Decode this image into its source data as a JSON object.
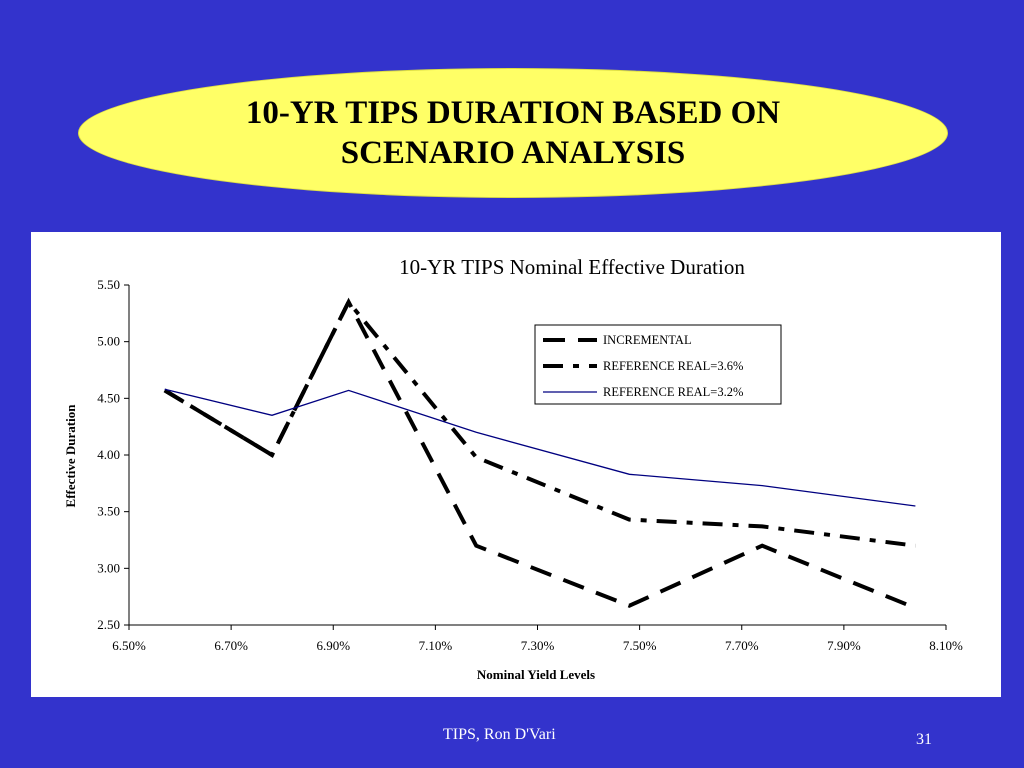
{
  "slide": {
    "title_line1": "10-YR TIPS DURATION BASED ON",
    "title_line2": "SCENARIO ANALYSIS",
    "footer": "TIPS, Ron D'Vari",
    "page_number": "31"
  },
  "colors": {
    "background": "#3333cc",
    "title_fill": "#ffff66",
    "series_dashed": "#000000",
    "series_solid": "#000080"
  },
  "chart_data": {
    "type": "line",
    "title": "10-YR TIPS Nominal Effective Duration",
    "xlabel": "Nominal Yield Levels",
    "ylabel": "Effective Duration",
    "xlim": [
      6.5,
      8.1
    ],
    "ylim": [
      2.5,
      5.5
    ],
    "x_ticks": [
      "6.50%",
      "6.70%",
      "6.90%",
      "7.10%",
      "7.30%",
      "7.50%",
      "7.70%",
      "7.90%",
      "8.10%"
    ],
    "y_ticks": [
      "2.50",
      "3.00",
      "3.50",
      "4.00",
      "4.50",
      "5.00",
      "5.50"
    ],
    "legend_position": "top-right",
    "series": [
      {
        "name": "INCREMENTAL",
        "style": "long-dash",
        "x": [
          6.57,
          6.78,
          6.93,
          7.18,
          7.48,
          7.74,
          8.04
        ],
        "y": [
          4.57,
          4.0,
          5.35,
          3.2,
          2.67,
          3.2,
          2.65
        ]
      },
      {
        "name": "REFERENCE REAL=3.6%",
        "style": "dash-dot",
        "x": [
          6.57,
          6.78,
          6.93,
          7.18,
          7.48,
          7.74,
          8.04
        ],
        "y": [
          4.57,
          4.0,
          5.35,
          3.98,
          3.43,
          3.37,
          3.2
        ]
      },
      {
        "name": "REFERENCE REAL=3.2%",
        "style": "solid",
        "x": [
          6.57,
          6.78,
          6.93,
          7.18,
          7.48,
          7.74,
          8.04
        ],
        "y": [
          4.58,
          4.35,
          4.57,
          4.2,
          3.83,
          3.73,
          3.55
        ]
      }
    ]
  }
}
